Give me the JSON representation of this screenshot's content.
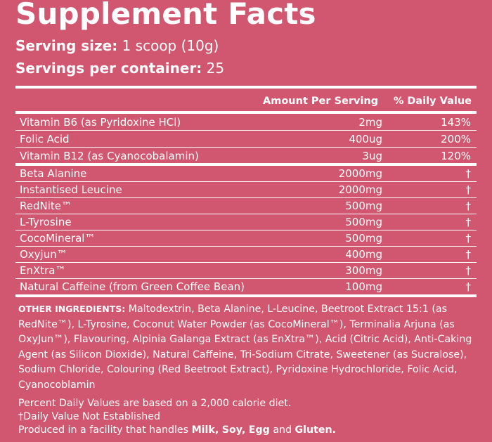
{
  "title": "Supplement Facts",
  "serving": {
    "size_label": "Serving size:",
    "size_value": "1 scoop (10g)",
    "count_label": "Servings per container:",
    "count_value": "25"
  },
  "headers": {
    "amount": "Amount Per Serving",
    "dv": "% Daily Value"
  },
  "vitamins": [
    {
      "name": "Vitamin B6 (as Pyridoxine HCl)",
      "amount": "2mg",
      "dv": "143%"
    },
    {
      "name": "Folic Acid",
      "amount": "400ug",
      "dv": "200%"
    },
    {
      "name": "Vitamin B12 (as Cyanocobalamin)",
      "amount": "3ug",
      "dv": "120%"
    }
  ],
  "blend": [
    {
      "name": "Beta Alanine",
      "amount": "2000mg",
      "dv": "†"
    },
    {
      "name": "Instantised Leucine",
      "amount": "2000mg",
      "dv": "†"
    },
    {
      "name": "RedNite™",
      "amount": "500mg",
      "dv": "†"
    },
    {
      "name": "L-Tyrosine",
      "amount": "500mg",
      "dv": "†"
    },
    {
      "name": "CocoMineral™",
      "amount": "500mg",
      "dv": "†"
    },
    {
      "name": "Oxyjun™",
      "amount": "400mg",
      "dv": "†"
    },
    {
      "name": "EnXtra™",
      "amount": "300mg",
      "dv": "†"
    },
    {
      "name": "Natural Caffeine (from Green Coffee Bean)",
      "amount": "100mg",
      "dv": "†"
    }
  ],
  "other_ingredients": {
    "label": "OTHER INGREDIENTS:",
    "text": " Maltodextrin, Beta Alanine, L-Leucine, Beetroot Extract 15:1 (as RedNite™), L-Tyrosine, Coconut Water Powder (as CocoMineral™), Terminalia Arjuna (as OxyJun™), Flavouring, Alpinia Galanga Extract (as EnXtra™), Acid (Citric Acid), Anti-Caking Agent (as Silicon Dioxide), Natural Caffeine, Tri-Sodium Citrate, Sweetener (as Sucralose), Sodium Chloride, Colouring (Red Beetroot Extract), Pyridoxine Hydrochloride, Folic Acid, Cyanocoblamin"
  },
  "footnotes": {
    "line1": "Percent Daily Values are based on a 2,000 calorie diet.",
    "line2": "†Daily Value Not Established",
    "line3_prefix": " Produced in a facility that handles ",
    "allergen1": "Milk,",
    "allergen2": "Soy,",
    "allergen3": "Egg",
    "and_word": "and",
    "allergen4": "Gluten."
  },
  "colors": {
    "background": "#d15670",
    "text": "#ffffff"
  }
}
